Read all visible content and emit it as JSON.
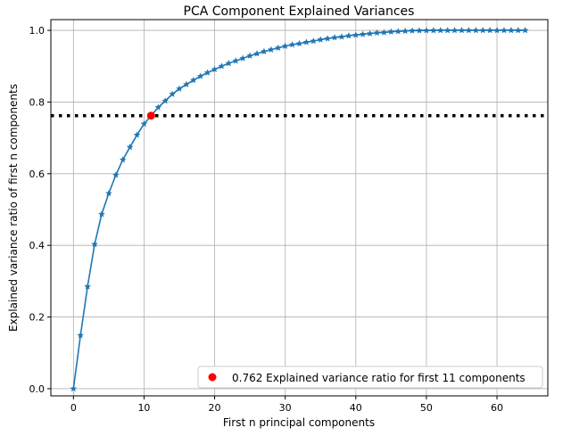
{
  "chart_data": {
    "type": "line",
    "title": "PCA Component Explained Variances",
    "xlabel": "First n principal components",
    "ylabel": "Explained variance ratio of first n components",
    "xlim": [
      -3.2,
      67.2
    ],
    "ylim": [
      -0.02,
      1.03
    ],
    "xticks": [
      0,
      10,
      20,
      30,
      40,
      50,
      60
    ],
    "yticks": [
      0.0,
      0.2,
      0.4,
      0.6,
      0.8,
      1.0
    ],
    "ytick_labels": [
      "0.0",
      "0.2",
      "0.4",
      "0.6",
      "0.8",
      "1.0"
    ],
    "grid": true,
    "legend_placement": "lower-right",
    "series": [
      {
        "marker": "star",
        "color": "#1f77b4",
        "x": [
          0,
          1,
          2,
          3,
          4,
          5,
          6,
          7,
          8,
          9,
          10,
          11,
          12,
          13,
          14,
          15,
          16,
          17,
          18,
          19,
          20,
          21,
          22,
          23,
          24,
          25,
          26,
          27,
          28,
          29,
          30,
          31,
          32,
          33,
          34,
          35,
          36,
          37,
          38,
          39,
          40,
          41,
          42,
          43,
          44,
          45,
          46,
          47,
          48,
          49,
          50,
          51,
          52,
          53,
          54,
          55,
          56,
          57,
          58,
          59,
          60,
          61,
          62,
          63,
          64
        ],
        "y": [
          0,
          0.149,
          0.285,
          0.403,
          0.487,
          0.545,
          0.596,
          0.639,
          0.674,
          0.708,
          0.739,
          0.762,
          0.785,
          0.803,
          0.822,
          0.837,
          0.849,
          0.861,
          0.872,
          0.882,
          0.891,
          0.9,
          0.908,
          0.915,
          0.922,
          0.929,
          0.935,
          0.941,
          0.946,
          0.951,
          0.956,
          0.96,
          0.963,
          0.967,
          0.97,
          0.974,
          0.977,
          0.98,
          0.982,
          0.985,
          0.987,
          0.989,
          0.991,
          0.993,
          0.994,
          0.996,
          0.997,
          0.998,
          0.999,
          0.9994,
          0.9997,
          0.9998,
          0.9999,
          0.9999,
          1.0,
          1.0,
          1.0,
          1.0,
          1.0,
          1.0,
          1.0,
          1.0,
          1.0,
          1.0,
          1.0
        ]
      }
    ],
    "threshold_line": {
      "y": 0.762,
      "style": "dotted",
      "color": "#000000"
    },
    "highlight_point": {
      "x": 11,
      "y": 0.762,
      "color": "#ff0000",
      "label": "0.762 Explained variance ratio for first 11 components"
    }
  }
}
